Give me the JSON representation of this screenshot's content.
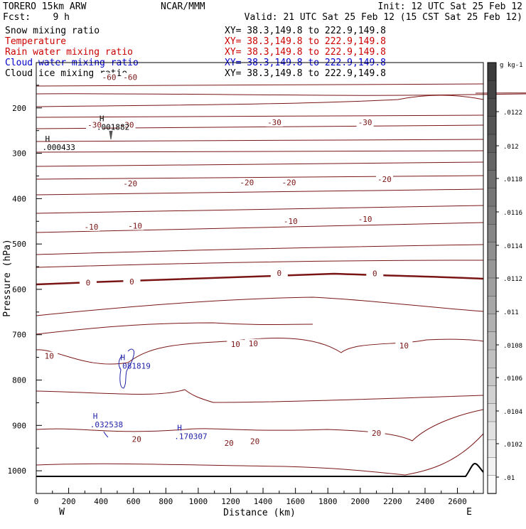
{
  "header": {
    "model": "TORERO  15km ARW",
    "center": "NCAR/MMM",
    "init": "Init: 12 UTC Sat 25 Feb 12",
    "fcst": "Fcst:    9 h",
    "valid": "Valid: 21 UTC Sat 25 Feb 12 (15 CST Sat 25 Feb 12)"
  },
  "legend": [
    {
      "label": "Snow mixing ratio",
      "color": "#000000",
      "xy": "XY=  38.3,149.8 to 222.9,149.8",
      "xy_color": "#000000"
    },
    {
      "label": "Temperature",
      "color": "#cc0000",
      "xy": "XY=  38.3,149.8 to 222.9,149.8",
      "xy_color": "#cc0000"
    },
    {
      "label": "Rain water mixing ratio",
      "color": "#cc0000",
      "xy": "XY=  38.3,149.8 to 222.9,149.8",
      "xy_color": "#cc0000"
    },
    {
      "label": "Cloud water mixing ratio",
      "color": "#0000cc",
      "xy": "XY=  38.3,149.8 to 222.9,149.8",
      "xy_color": "#0000cc"
    },
    {
      "label": "Cloud ice mixing ratio",
      "color": "#000000",
      "xy": "XY=  38.3,149.8 to 222.9,149.8",
      "xy_color": "#000000"
    }
  ],
  "chart_data": {
    "type": "contour",
    "xlabel": "Distance (km)",
    "ylabel": "Pressure (hPa)",
    "xlim": [
      0,
      2760
    ],
    "ylim": [
      1050,
      100
    ],
    "x_ticks": [
      0,
      200,
      400,
      600,
      800,
      1000,
      1200,
      1400,
      1600,
      1800,
      2000,
      2200,
      2400,
      2600
    ],
    "y_ticks": [
      200,
      300,
      400,
      500,
      600,
      700,
      800,
      900,
      1000
    ],
    "x_end_labels": {
      "left": "W",
      "right": "E"
    },
    "colorbar": {
      "units": "g kg-1",
      "ticks": [
        ".0122",
        ".012",
        ".0118",
        ".0116",
        ".0114",
        ".0112",
        ".011",
        ".0108",
        ".0106",
        ".0104",
        ".0102",
        ".01"
      ]
    },
    "temperature_contour_labels": [
      {
        "text": "-60",
        "x": 450,
        "p": 135
      },
      {
        "text": "-60",
        "x": 580,
        "p": 135
      },
      {
        "text": "-30",
        "x": 360,
        "p": 240
      },
      {
        "text": "-30",
        "x": 560,
        "p": 240
      },
      {
        "text": "-30",
        "x": 1470,
        "p": 235
      },
      {
        "text": "-30",
        "x": 2030,
        "p": 235
      },
      {
        "text": "-20",
        "x": 580,
        "p": 370
      },
      {
        "text": "-20",
        "x": 1300,
        "p": 367
      },
      {
        "text": "-20",
        "x": 1560,
        "p": 367
      },
      {
        "text": "-20",
        "x": 2150,
        "p": 360
      },
      {
        "text": "-10",
        "x": 340,
        "p": 465
      },
      {
        "text": "-10",
        "x": 610,
        "p": 463
      },
      {
        "text": "-10",
        "x": 1570,
        "p": 453
      },
      {
        "text": "-10",
        "x": 2030,
        "p": 448
      },
      {
        "text": "0",
        "x": 320,
        "p": 588
      },
      {
        "text": "0",
        "x": 590,
        "p": 586
      },
      {
        "text": "0",
        "x": 1500,
        "p": 567
      },
      {
        "text": "0",
        "x": 2090,
        "p": 568
      },
      {
        "text": "10",
        "x": 80,
        "p": 750
      },
      {
        "text": "10",
        "x": 1230,
        "p": 724
      },
      {
        "text": "10",
        "x": 1340,
        "p": 722
      },
      {
        "text": "10",
        "x": 2270,
        "p": 727
      },
      {
        "text": "20",
        "x": 620,
        "p": 933
      },
      {
        "text": "20",
        "x": 1190,
        "p": 942
      },
      {
        "text": "20",
        "x": 1350,
        "p": 938
      },
      {
        "text": "20",
        "x": 2100,
        "p": 920
      }
    ],
    "maxima": [
      {
        "mark": "H",
        "value": ".001882",
        "x": 390,
        "p": 248,
        "series": "Cloud ice mixing ratio"
      },
      {
        "mark": "H",
        "value": ".000433",
        "x": 55,
        "p": 293,
        "series": "Snow mixing ratio"
      },
      {
        "mark": "H",
        "value": ".081819",
        "x": 520,
        "p": 775,
        "series": "Cloud water mixing ratio"
      },
      {
        "mark": "H",
        "value": ".032538",
        "x": 350,
        "p": 904,
        "series": "Cloud water mixing ratio"
      },
      {
        "mark": "H",
        "value": ".170307",
        "x": 870,
        "p": 930,
        "series": "Cloud water mixing ratio"
      }
    ]
  }
}
